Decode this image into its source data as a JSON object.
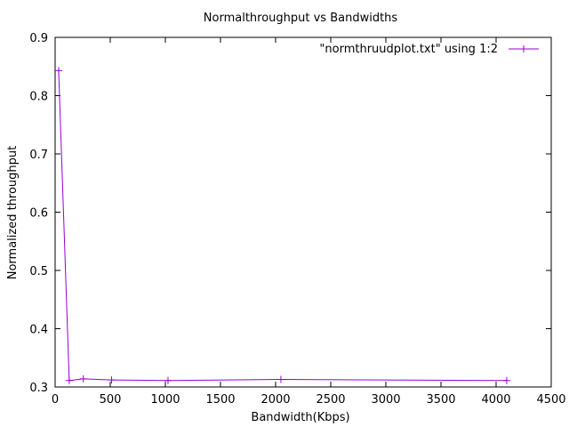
{
  "chart_data": {
    "type": "line",
    "title": "Normalthroughput vs Bandwidths",
    "xlabel": "Bandwidth(Kbps)",
    "ylabel": "Normalized throughput",
    "xlim": [
      0,
      4500
    ],
    "ylim": [
      0.3,
      0.9
    ],
    "xticks": [
      0,
      500,
      1000,
      1500,
      2000,
      2500,
      3000,
      3500,
      4000,
      4500
    ],
    "yticks": [
      0.3,
      0.4,
      0.5,
      0.6,
      0.7,
      0.8,
      0.9
    ],
    "xtick_labels": [
      "0",
      "500",
      "1000",
      "1500",
      "2000",
      "2500",
      "3000",
      "3500",
      "4000",
      "4500"
    ],
    "ytick_labels": [
      "0.3",
      "0.4",
      "0.5",
      "0.6",
      "0.7",
      "0.8",
      "0.9"
    ],
    "grid": false,
    "legend_position": "top-right",
    "series": [
      {
        "name": "\"normthruudplot.txt\" using 1:2",
        "color": "#9400d3",
        "marker": "plus",
        "x": [
          32,
          128,
          256,
          512,
          1024,
          2048,
          4096
        ],
        "y": [
          0.843,
          0.311,
          0.314,
          0.312,
          0.311,
          0.313,
          0.311
        ]
      }
    ]
  }
}
